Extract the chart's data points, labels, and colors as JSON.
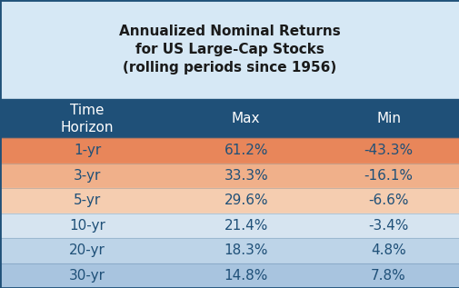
{
  "title": "Annualized Nominal Returns\nfor US Large-Cap Stocks\n(rolling periods since 1956)",
  "col_headers": [
    "Time\nHorizon",
    "Max",
    "Min"
  ],
  "rows": [
    [
      "1-yr",
      "61.2%",
      "-43.3%"
    ],
    [
      "3-yr",
      "33.3%",
      "-16.1%"
    ],
    [
      "5-yr",
      "29.6%",
      "-6.6%"
    ],
    [
      "10-yr",
      "21.4%",
      "-3.4%"
    ],
    [
      "20-yr",
      "18.3%",
      "4.8%"
    ],
    [
      "30-yr",
      "14.8%",
      "7.8%"
    ]
  ],
  "title_bg": "#d6e8f5",
  "header_bg": "#1f5078",
  "header_text_color": "#ffffff",
  "row_colors": [
    "#e8865a",
    "#f0b08a",
    "#f5cdb0",
    "#d6e4f0",
    "#bdd4e8",
    "#a8c4df"
  ],
  "row_text_color": "#1f5078",
  "outer_border_color": "#1f5078",
  "title_fontsize": 11,
  "header_fontsize": 11,
  "cell_fontsize": 11
}
